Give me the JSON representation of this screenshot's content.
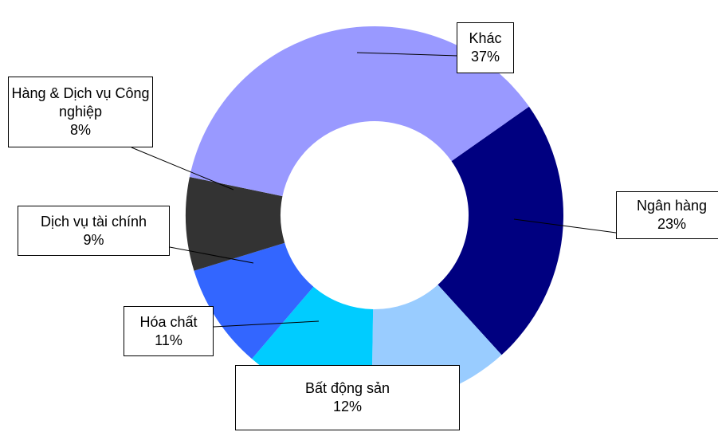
{
  "chart_data": {
    "type": "pie",
    "categories": [
      "Ngân hàng",
      "Bất động sản",
      "Hóa chất",
      "Dịch vụ tài chính",
      "Hàng & Dịch vụ Công nghiệp",
      "Khác"
    ],
    "values": [
      23,
      12,
      11,
      9,
      8,
      37
    ],
    "value_labels": [
      "23%",
      "12%",
      "11%",
      "9%",
      "8%",
      "37%"
    ],
    "colors": [
      "#000080",
      "#99ccff",
      "#00ccff",
      "#3366ff",
      "#333333",
      "#9999ff"
    ]
  }
}
